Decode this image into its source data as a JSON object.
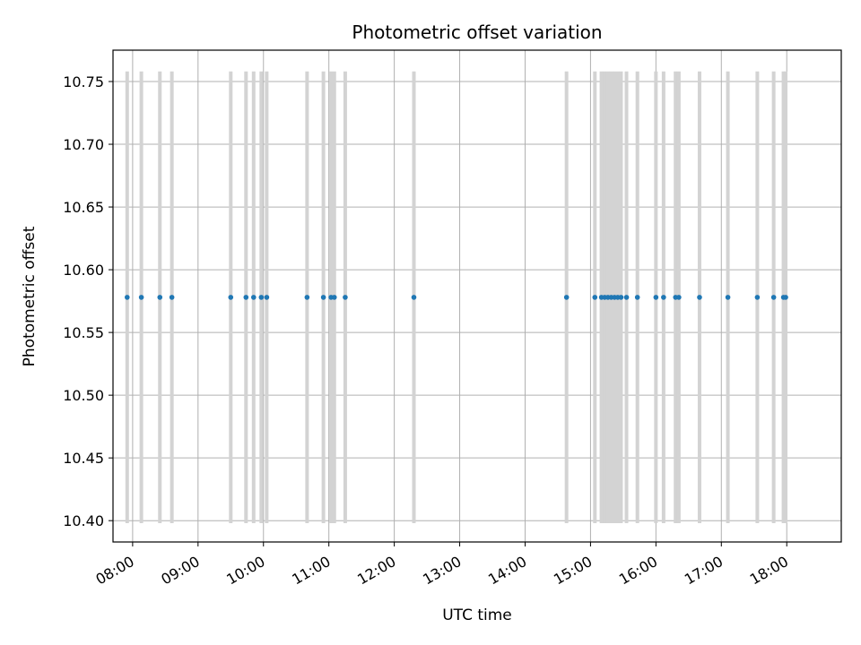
{
  "chart_data": {
    "type": "scatter",
    "title": "Photometric offset variation",
    "xlabel": "UTC time",
    "ylabel": "Photometric offset",
    "x_axis_type": "time",
    "xlim": [
      "07:42",
      "18:50"
    ],
    "ylim": [
      10.383,
      10.775
    ],
    "grid": true,
    "legend": "none",
    "x_tick_labels": [
      "08:00",
      "09:00",
      "10:00",
      "11:00",
      "12:00",
      "13:00",
      "14:00",
      "15:00",
      "16:00",
      "17:00",
      "18:00"
    ],
    "y_tick_labels": [
      "10.40",
      "10.45",
      "10.50",
      "10.55",
      "10.60",
      "10.65",
      "10.70",
      "10.75"
    ],
    "y_ticks": [
      10.4,
      10.45,
      10.5,
      10.55,
      10.6,
      10.65,
      10.7,
      10.75
    ],
    "error_bar_range": [
      10.398,
      10.758
    ],
    "y_value": 10.578,
    "x": [
      "07:55",
      "08:08",
      "08:25",
      "08:36",
      "09:30",
      "09:44",
      "09:51",
      "09:58",
      "10:03",
      "10:40",
      "10:55",
      "11:02",
      "11:05",
      "11:15",
      "12:18",
      "14:38",
      "15:04",
      "15:10",
      "15:13",
      "15:16",
      "15:19",
      "15:22",
      "15:25",
      "15:28",
      "15:33",
      "15:43",
      "16:00",
      "16:07",
      "16:18",
      "16:21",
      "16:40",
      "17:06",
      "17:33",
      "17:48",
      "17:57",
      "17:59"
    ],
    "colors": {
      "points": "#1f77b4",
      "error_bars": "#d3d3d3",
      "grid": "#b0b0b0"
    }
  }
}
